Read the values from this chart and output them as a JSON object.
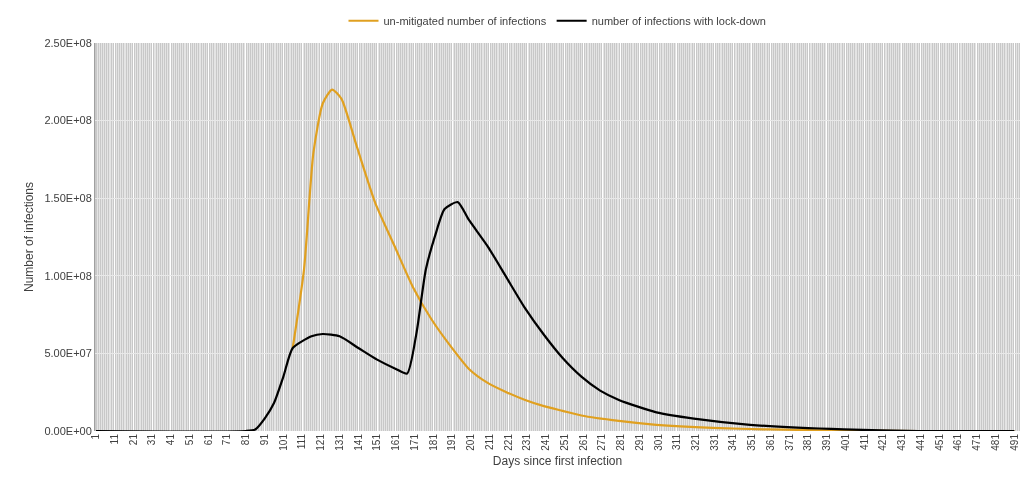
{
  "chart_data": {
    "type": "line",
    "xlabel": "Days since first infection",
    "ylabel": "Number of infections",
    "xlim": [
      0.5,
      494
    ],
    "xticks": [
      1,
      11,
      21,
      31,
      41,
      51,
      61,
      71,
      81,
      91,
      101,
      111,
      121,
      131,
      141,
      151,
      161,
      171,
      181,
      191,
      201,
      211,
      221,
      231,
      241,
      251,
      261,
      271,
      281,
      291,
      301,
      311,
      321,
      331,
      341,
      351,
      361,
      371,
      381,
      391,
      401,
      411,
      421,
      431,
      441,
      451,
      461,
      471,
      481,
      491
    ],
    "ylim": [
      0,
      250000000
    ],
    "yticks": [
      {
        "value": 0,
        "label": "0.00E+00"
      },
      {
        "value": 50000000,
        "label": "5.00E+07"
      },
      {
        "value": 100000000,
        "label": "1.00E+08"
      },
      {
        "value": 150000000,
        "label": "1.50E+08"
      },
      {
        "value": 200000000,
        "label": "2.00E+08"
      },
      {
        "value": 250000000,
        "label": "2.50E+08"
      }
    ],
    "grid": true,
    "legend": "top",
    "marker": "none",
    "line_style": "solid",
    "series": [
      {
        "name": "un-mitigated number of infections",
        "color": "#e0a020",
        "x": [
          106,
          112,
          117,
          122,
          127,
          132,
          140,
          150,
          160,
          170,
          180,
          190,
          200,
          210,
          220,
          230,
          240,
          250,
          260,
          280,
          300,
          330,
          360,
          400,
          440,
          491
        ],
        "values": [
          53500000,
          104000000,
          179000000,
          211000000,
          220000000,
          214000000,
          184000000,
          147000000,
          120000000,
          93000000,
          72000000,
          55000000,
          40000000,
          31000000,
          25000000,
          20000000,
          16000000,
          13000000,
          10000000,
          6500000,
          4000000,
          2000000,
          1000000,
          300000,
          0,
          0
        ]
      },
      {
        "name": "number of infections with lock-down",
        "color": "#000000",
        "x": [
          1,
          81,
          86,
          91,
          96,
          101,
          106,
          116,
          122,
          131,
          141,
          151,
          161,
          167,
          172,
          177,
          182,
          187,
          194,
          200,
          210,
          220,
          230,
          240,
          250,
          260,
          270,
          280,
          300,
          320,
          350,
          400,
          440,
          491
        ],
        "values": [
          0,
          0,
          1000000,
          8000000,
          18000000,
          35000000,
          53500000,
          61000000,
          62500000,
          61000000,
          53500000,
          46000000,
          40000000,
          37000000,
          63000000,
          104000000,
          126000000,
          143000000,
          147500000,
          136000000,
          119000000,
          99000000,
          79000000,
          62000000,
          47000000,
          35000000,
          26000000,
          20000000,
          12000000,
          8000000,
          4000000,
          1000000,
          0,
          0
        ]
      }
    ]
  }
}
